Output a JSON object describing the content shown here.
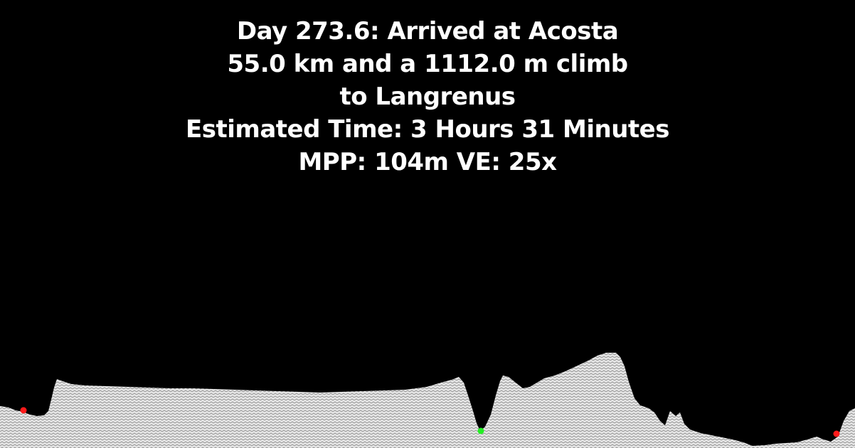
{
  "caption": {
    "line1": "Day 273.6: Arrived at Acosta",
    "line2": "55.0 km and a 1112.0 m climb",
    "line3": "to Langrenus",
    "line4": "Estimated Time: 3 Hours 31 Minutes",
    "line5": "MPP: 104m VE: 25x"
  },
  "colors": {
    "background": "#000000",
    "text": "#ffffff",
    "terrain_fill": "#e6e6e6",
    "terrain_hatch": "#8a8a8a",
    "marker_red": "#ff1a1a",
    "marker_green": "#22ee22"
  }
}
